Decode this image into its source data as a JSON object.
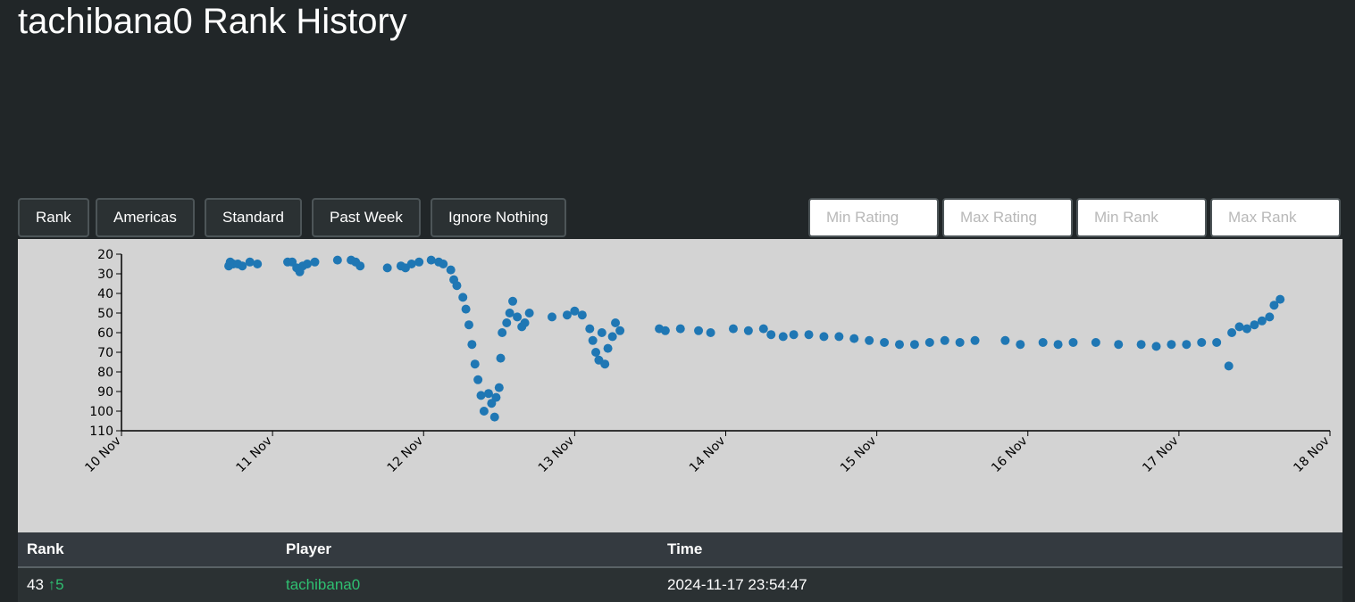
{
  "header": {
    "title": "tachibana0 Rank History"
  },
  "controls": {
    "buttons": [
      "Rank",
      "Americas",
      "Standard",
      "Past Week",
      "Ignore Nothing"
    ],
    "inputs": [
      "Min Rating",
      "Max Rating",
      "Min Rank",
      "Max Rank"
    ]
  },
  "chart_data": {
    "type": "scatter",
    "color": "#1f77b4",
    "x": [
      10.71,
      10.72,
      10.74,
      10.77,
      10.8,
      10.85,
      10.9,
      11.1,
      11.13,
      11.16,
      11.18,
      11.2,
      11.23,
      11.28,
      11.43,
      11.52,
      11.55,
      11.58,
      11.76,
      11.85,
      11.88,
      11.92,
      11.97,
      12.05,
      12.1,
      12.13,
      12.18,
      12.2,
      12.22,
      12.26,
      12.28,
      12.3,
      12.32,
      12.34,
      12.36,
      12.38,
      12.4,
      12.43,
      12.45,
      12.47,
      12.48,
      12.5,
      12.51,
      12.52,
      12.55,
      12.57,
      12.59,
      12.62,
      12.65,
      12.67,
      12.7,
      12.85,
      12.95,
      13.0,
      13.05,
      13.1,
      13.12,
      13.14,
      13.16,
      13.18,
      13.2,
      13.22,
      13.25,
      13.27,
      13.3,
      13.56,
      13.6,
      13.7,
      13.82,
      13.9,
      14.05,
      14.15,
      14.25,
      14.3,
      14.38,
      14.45,
      14.55,
      14.65,
      14.75,
      14.85,
      14.95,
      15.05,
      15.15,
      15.25,
      15.35,
      15.45,
      15.55,
      15.65,
      15.85,
      15.95,
      16.1,
      16.2,
      16.3,
      16.45,
      16.6,
      16.75,
      16.85,
      16.95,
      17.05,
      17.15,
      17.25,
      17.33,
      17.35,
      17.4,
      17.45,
      17.5,
      17.55,
      17.6,
      17.63,
      17.67
    ],
    "values": [
      26,
      24,
      25,
      25,
      26,
      24,
      25,
      24,
      24,
      27,
      29,
      26,
      25,
      24,
      23,
      23,
      24,
      26,
      27,
      26,
      27,
      25,
      24,
      23,
      24,
      25,
      28,
      33,
      36,
      42,
      48,
      56,
      66,
      76,
      84,
      92,
      100,
      91,
      96,
      103,
      93,
      88,
      73,
      60,
      55,
      50,
      44,
      52,
      57,
      55,
      50,
      52,
      51,
      49,
      51,
      58,
      64,
      70,
      74,
      60,
      76,
      68,
      62,
      55,
      59,
      58,
      59,
      58,
      59,
      60,
      58,
      59,
      58,
      61,
      62,
      61,
      61,
      62,
      62,
      63,
      64,
      65,
      66,
      66,
      65,
      64,
      65,
      64,
      64,
      66,
      65,
      66,
      65,
      65,
      66,
      66,
      67,
      66,
      66,
      65,
      65,
      77,
      60,
      57,
      58,
      56,
      54,
      52,
      46,
      43
    ],
    "xlim": [
      10,
      18
    ],
    "xticks": [
      {
        "value": 10,
        "label": "10 Nov"
      },
      {
        "value": 11,
        "label": "11 Nov"
      },
      {
        "value": 12,
        "label": "12 Nov"
      },
      {
        "value": 13,
        "label": "13 Nov"
      },
      {
        "value": 14,
        "label": "14 Nov"
      },
      {
        "value": 15,
        "label": "15 Nov"
      },
      {
        "value": 16,
        "label": "16 Nov"
      },
      {
        "value": 17,
        "label": "17 Nov"
      },
      {
        "value": 18,
        "label": "18 Nov"
      }
    ],
    "ylim": [
      110,
      20
    ],
    "yticks": [
      20,
      30,
      40,
      50,
      60,
      70,
      80,
      90,
      100,
      110
    ]
  },
  "table": {
    "columns": [
      "Rank",
      "Player",
      "Time"
    ],
    "rows": [
      [
        "43",
        "↑5",
        "tachibana0",
        "2024-11-17 23:54:47"
      ]
    ]
  }
}
